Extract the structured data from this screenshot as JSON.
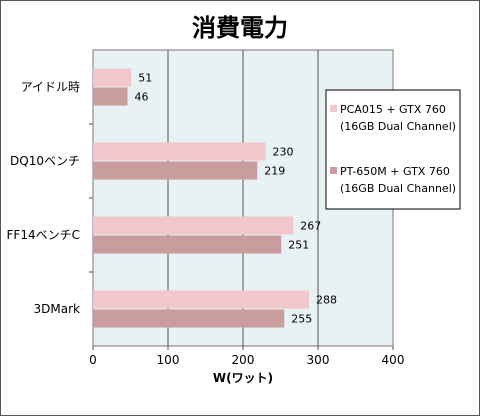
{
  "chart_data": {
    "type": "bar",
    "orientation": "horizontal",
    "title": "消費電力",
    "xlabel": "W(ワット)",
    "ylabel": "",
    "xlim": [
      0,
      400
    ],
    "xticks": [
      0,
      100,
      200,
      300,
      400
    ],
    "grid": true,
    "legend_position": "right",
    "categories": [
      "アイドル時",
      "DQ10ベンチ",
      "FF14ベンチC",
      "3DMark"
    ],
    "series": [
      {
        "name_line1": "PCA015 + GTX 760",
        "name_line2": "(16GB Dual Channel)",
        "color": "#f2c7cb",
        "values": [
          51,
          230,
          267,
          288
        ]
      },
      {
        "name_line1": "PT-650M + GTX 760",
        "name_line2": "(16GB Dual Channel)",
        "color": "#c99c9e",
        "values": [
          46,
          219,
          251,
          255
        ]
      }
    ],
    "plot_background": "#e8f1f3"
  }
}
